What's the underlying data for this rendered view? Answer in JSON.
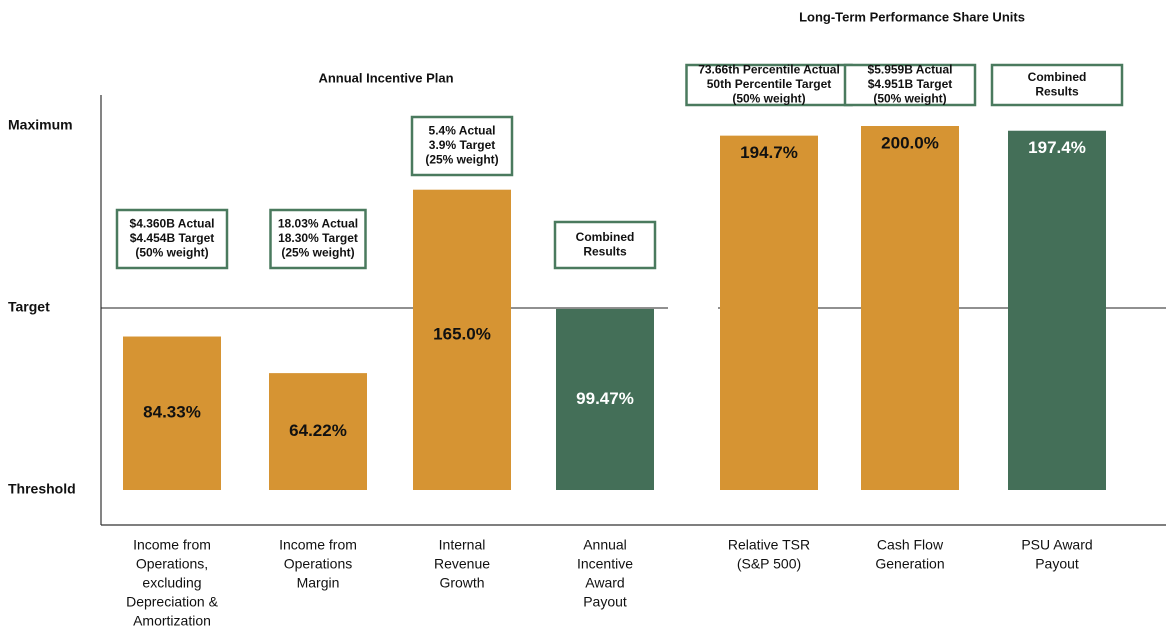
{
  "chart_data": {
    "type": "bar",
    "yticks": [
      {
        "value": 0,
        "label": "Threshold"
      },
      {
        "value": 100,
        "label": "Target"
      },
      {
        "value": 200,
        "label": "Maximum"
      }
    ],
    "ylim": [
      0,
      200
    ],
    "groups": [
      {
        "title": "Annual Incentive Plan",
        "categories": [
          [
            "Income from",
            "Operations,",
            "excluding",
            "Depreciation &",
            "Amortization"
          ],
          [
            "Income from",
            "Operations",
            "Margin"
          ],
          [
            "Internal",
            "Revenue",
            "Growth"
          ],
          [
            "Annual",
            "Incentive",
            "Award",
            "Payout"
          ]
        ],
        "values": [
          84.33,
          64.22,
          165.0,
          99.47
        ],
        "value_labels": [
          "84.33%",
          "64.22%",
          "165.0%",
          "99.47%"
        ],
        "colors": [
          "#d69433",
          "#d69433",
          "#d69433",
          "#446f58"
        ],
        "annotations": [
          [
            "$4.360B Actual",
            "$4.454B Target",
            "(50% weight)"
          ],
          [
            "18.03% Actual",
            "18.30% Target",
            "(25% weight)"
          ],
          [
            "5.4% Actual",
            "3.9% Target",
            "(25% weight)"
          ],
          [
            "Combined",
            "Results"
          ]
        ]
      },
      {
        "title": "Long-Term Performance Share Units",
        "categories": [
          [
            "Relative TSR",
            "(S&P 500)"
          ],
          [
            "Cash Flow",
            "Generation"
          ],
          [
            "PSU Award",
            "Payout"
          ]
        ],
        "values": [
          194.7,
          200.0,
          197.4
        ],
        "value_labels": [
          "194.7%",
          "200.0%",
          "197.4%"
        ],
        "colors": [
          "#d69433",
          "#d69433",
          "#446f58"
        ],
        "annotations": [
          [
            "73.66th Percentile Actual",
            "50th Percentile Target",
            "(50% weight)"
          ],
          [
            "$5.959B Actual",
            "$4.951B Target",
            "(50% weight)"
          ],
          [
            "Combined",
            "Results"
          ]
        ]
      }
    ]
  }
}
